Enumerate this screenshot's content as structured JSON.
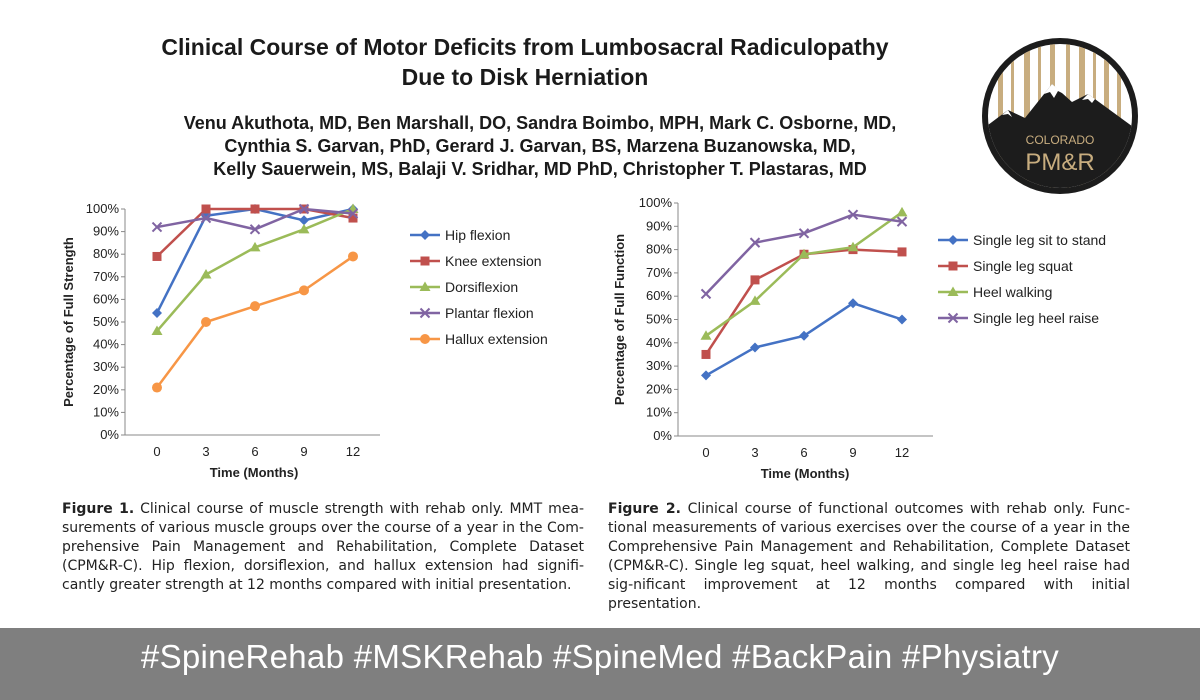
{
  "title_line1": "Clinical Course of Motor Deficits from Lumbosacral Radiculopathy",
  "title_line2": "Due to Disk Herniation",
  "authors_line1": "Venu Akuthota, MD, Ben Marshall, DO, Sandra Boimbo, MPH, Mark C. Osborne, MD,",
  "authors_line2": "Cynthia S. Garvan, PhD, Gerard J. Garvan, BS, Marzena Buzanowska, MD,",
  "authors_line3": "Kelly Sauerwein, MS, Balaji V. Sridhar, MD PhD, Christopher T. Plastaras, MD",
  "logo": {
    "line1": "COLORADO",
    "line2": "PM&R"
  },
  "colors": {
    "blue": "#4472c4",
    "red": "#c0504d",
    "green": "#9bbb59",
    "purple": "#8064a2",
    "orange": "#f79646",
    "footer_bg": "#7f7f7f"
  },
  "chart_data": [
    {
      "type": "line",
      "x": [
        0,
        3,
        6,
        9,
        12
      ],
      "xlabel": "Time (Months)",
      "ylabel": "Percentage of Full Strength",
      "ylim": [
        0,
        100
      ],
      "yticks": [
        "0%",
        "10%",
        "20%",
        "30%",
        "40%",
        "50%",
        "60%",
        "70%",
        "80%",
        "90%",
        "100%"
      ],
      "series": [
        {
          "name": "Hip flexion",
          "color": "#4472c4",
          "marker": "diamond",
          "values": [
            54,
            97,
            100,
            95,
            100
          ]
        },
        {
          "name": "Knee extension",
          "color": "#c0504d",
          "marker": "square",
          "values": [
            79,
            100,
            100,
            100,
            96
          ]
        },
        {
          "name": "Dorsiflexion",
          "color": "#9bbb59",
          "marker": "triangle",
          "values": [
            46,
            71,
            83,
            91,
            100
          ]
        },
        {
          "name": "Plantar flexion",
          "color": "#8064a2",
          "marker": "x",
          "values": [
            92,
            96,
            91,
            100,
            98
          ]
        },
        {
          "name": "Hallux extension",
          "color": "#f79646",
          "marker": "circle",
          "values": [
            21,
            50,
            57,
            64,
            79
          ]
        }
      ]
    },
    {
      "type": "line",
      "x": [
        0,
        3,
        6,
        9,
        12
      ],
      "xlabel": "Time (Months)",
      "ylabel": "Percentage of Full Function",
      "ylim": [
        0,
        100
      ],
      "yticks": [
        "0%",
        "10%",
        "20%",
        "30%",
        "40%",
        "50%",
        "60%",
        "70%",
        "80%",
        "90%",
        "100%"
      ],
      "series": [
        {
          "name": "Single leg sit to stand",
          "color": "#4472c4",
          "marker": "diamond",
          "values": [
            26,
            38,
            43,
            57,
            50
          ]
        },
        {
          "name": "Single leg squat",
          "color": "#c0504d",
          "marker": "square",
          "values": [
            35,
            67,
            78,
            80,
            79
          ]
        },
        {
          "name": "Heel walking",
          "color": "#9bbb59",
          "marker": "triangle",
          "values": [
            43,
            58,
            78,
            81,
            96
          ]
        },
        {
          "name": "Single leg heel raise",
          "color": "#8064a2",
          "marker": "x",
          "values": [
            61,
            83,
            87,
            95,
            92
          ]
        }
      ]
    }
  ],
  "caption1": {
    "label": "Figure 1.",
    "text": "Clinical course of muscle strength with rehab only. MMT mea-surements of various muscle groups over the course of a year in the Com-prehensive Pain Management and Rehabilitation, Complete Dataset (CPM&R-C). Hip flexion, dorsiflexion, and hallux extension had signifi-cantly greater strength at 12 months compared with initial presentation."
  },
  "caption2": {
    "label": "Figure 2.",
    "text": "Clinical course of functional outcomes with rehab only. Func-tional measurements of various exercises over the course of a year in the Comprehensive Pain Management and Rehabilitation, Complete Dataset (CPM&R-C). Single leg squat, heel walking, and single leg heel raise had sig-nificant improvement at 12 months compared with initial presentation."
  },
  "footer": "#SpineRehab #MSKRehab #SpineMed #BackPain #Physiatry"
}
